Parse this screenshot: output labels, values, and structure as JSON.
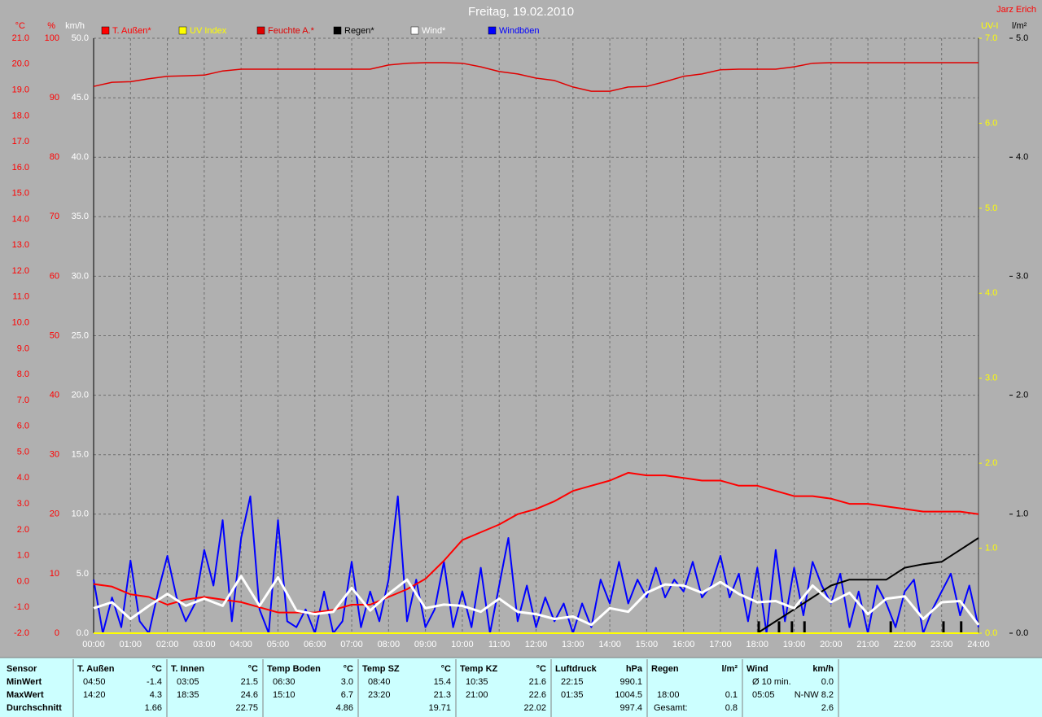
{
  "chart_data": {
    "type": "line",
    "title": "Freitag, 19.02.2010",
    "author": "Jarz Erich",
    "grid": true,
    "xlim": [
      0,
      24
    ],
    "xticks": [
      {
        "value": 0,
        "label": "00:00"
      },
      {
        "value": 1,
        "label": "01:00"
      },
      {
        "value": 2,
        "label": "02:00"
      },
      {
        "value": 3,
        "label": "03:00"
      },
      {
        "value": 4,
        "label": "04:00"
      },
      {
        "value": 5,
        "label": "05:00"
      },
      {
        "value": 6,
        "label": "06:00"
      },
      {
        "value": 7,
        "label": "07:00"
      },
      {
        "value": 8,
        "label": "08:00"
      },
      {
        "value": 9,
        "label": "09:00"
      },
      {
        "value": 10,
        "label": "10:00"
      },
      {
        "value": 11,
        "label": "11:00"
      },
      {
        "value": 12,
        "label": "12:00"
      },
      {
        "value": 13,
        "label": "13:00"
      },
      {
        "value": 14,
        "label": "14:00"
      },
      {
        "value": 15,
        "label": "15:00"
      },
      {
        "value": 16,
        "label": "16:00"
      },
      {
        "value": 17,
        "label": "17:00"
      },
      {
        "value": 18,
        "label": "18:00"
      },
      {
        "value": 19,
        "label": "19:00"
      },
      {
        "value": 20,
        "label": "20:00"
      },
      {
        "value": 21,
        "label": "21:00"
      },
      {
        "value": 22,
        "label": "22:00"
      },
      {
        "value": 23,
        "label": "23:00"
      },
      {
        "value": 24,
        "label": "24:00"
      }
    ],
    "x": [
      0,
      0.5,
      1,
      1.5,
      2,
      2.5,
      3,
      3.5,
      4,
      4.5,
      5,
      5.5,
      6,
      6.5,
      7,
      7.5,
      8,
      8.5,
      9,
      9.5,
      10,
      10.5,
      11,
      11.5,
      12,
      12.5,
      13,
      13.5,
      14,
      14.5,
      15,
      15.5,
      16,
      16.5,
      17,
      17.5,
      18,
      18.5,
      19,
      19.5,
      20,
      20.5,
      21,
      21.5,
      22,
      22.5,
      23,
      23.5,
      24
    ],
    "axes": {
      "celsius": {
        "label": "°C",
        "color": "#ff0000",
        "side": "left",
        "lim": [
          -2,
          21
        ],
        "ticks": [
          {
            "value": -2,
            "label": "-2.0"
          },
          {
            "value": -1,
            "label": "-1.0"
          },
          {
            "value": 0,
            "label": "0.0"
          },
          {
            "value": 1,
            "label": "1.0"
          },
          {
            "value": 2,
            "label": "2.0"
          },
          {
            "value": 3,
            "label": "3.0"
          },
          {
            "value": 4,
            "label": "4.0"
          },
          {
            "value": 5,
            "label": "5.0"
          },
          {
            "value": 6,
            "label": "6.0"
          },
          {
            "value": 7,
            "label": "7.0"
          },
          {
            "value": 8,
            "label": "8.0"
          },
          {
            "value": 9,
            "label": "9.0"
          },
          {
            "value": 10,
            "label": "10.0"
          },
          {
            "value": 11,
            "label": "11.0"
          },
          {
            "value": 12,
            "label": "12.0"
          },
          {
            "value": 13,
            "label": "13.0"
          },
          {
            "value": 14,
            "label": "14.0"
          },
          {
            "value": 15,
            "label": "15.0"
          },
          {
            "value": 16,
            "label": "16.0"
          },
          {
            "value": 17,
            "label": "17.0"
          },
          {
            "value": 18,
            "label": "18.0"
          },
          {
            "value": 19,
            "label": "19.0"
          },
          {
            "value": 20,
            "label": "20.0"
          },
          {
            "value": 21,
            "label": "21.0"
          }
        ]
      },
      "percent": {
        "label": "%",
        "color": "#ff0000",
        "side": "left",
        "lim": [
          0,
          100
        ],
        "ticks": [
          0,
          10,
          20,
          30,
          40,
          50,
          60,
          70,
          80,
          90,
          100
        ]
      },
      "kmh": {
        "label": "km/h",
        "color": "#ffffff",
        "side": "left",
        "lim": [
          0,
          50
        ],
        "grid": true,
        "ticks": [
          {
            "value": 0,
            "label": "0.0"
          },
          {
            "value": 5,
            "label": "5.0"
          },
          {
            "value": 10,
            "label": "10.0"
          },
          {
            "value": 15,
            "label": "15.0"
          },
          {
            "value": 20,
            "label": "20.0"
          },
          {
            "value": 25,
            "label": "25.0"
          },
          {
            "value": 30,
            "label": "30.0"
          },
          {
            "value": 35,
            "label": "35.0"
          },
          {
            "value": 40,
            "label": "40.0"
          },
          {
            "value": 45,
            "label": "45.0"
          },
          {
            "value": 50,
            "label": "50.0"
          }
        ]
      },
      "uv": {
        "label": "UV-I",
        "color": "#ffff00",
        "side": "right",
        "lim": [
          0,
          7
        ],
        "ticks": [
          {
            "value": 0,
            "label": "0.0"
          },
          {
            "value": 1,
            "label": "1.0"
          },
          {
            "value": 2,
            "label": "2.0"
          },
          {
            "value": 3,
            "label": "3.0"
          },
          {
            "value": 4,
            "label": "4.0"
          },
          {
            "value": 5,
            "label": "5.0"
          },
          {
            "value": 6,
            "label": "6.0"
          },
          {
            "value": 7,
            "label": "7.0"
          }
        ]
      },
      "rain": {
        "label": "l/m²",
        "color": "#000000",
        "side": "right",
        "lim": [
          0,
          5
        ],
        "ticks": [
          {
            "value": 0,
            "label": "0.0"
          },
          {
            "value": 1,
            "label": "1.0"
          },
          {
            "value": 2,
            "label": "2.0"
          },
          {
            "value": 3,
            "label": "3.0"
          },
          {
            "value": 4,
            "label": "4.0"
          },
          {
            "value": 5,
            "label": "5.0"
          }
        ]
      }
    },
    "series": [
      {
        "name": "T. Außen*",
        "color": "#ff0000",
        "axis": "celsius",
        "values": [
          -0.1,
          -0.2,
          -0.5,
          -0.6,
          -0.9,
          -0.7,
          -0.6,
          -0.7,
          -0.8,
          -1.0,
          -1.2,
          -1.2,
          -1.2,
          -1.1,
          -0.9,
          -0.9,
          -0.6,
          -0.3,
          0.1,
          0.8,
          1.6,
          1.9,
          2.2,
          2.6,
          2.8,
          3.1,
          3.5,
          3.7,
          3.9,
          4.2,
          4.1,
          4.1,
          4.0,
          3.9,
          3.9,
          3.7,
          3.7,
          3.5,
          3.3,
          3.3,
          3.2,
          3.0,
          3.0,
          2.9,
          2.8,
          2.7,
          2.7,
          2.7,
          2.6
        ]
      },
      {
        "name": "UV Index",
        "color": "#ffff00",
        "axis": "uv",
        "values": [
          0,
          0,
          0,
          0,
          0,
          0,
          0,
          0,
          0,
          0,
          0,
          0,
          0,
          0,
          0,
          0,
          0,
          0,
          0,
          0,
          0,
          0,
          0,
          0,
          0,
          0,
          0,
          0,
          0,
          0,
          0,
          0,
          0,
          0,
          0,
          0,
          0,
          0,
          0,
          0,
          0,
          0,
          0,
          0,
          0,
          0,
          0,
          0,
          0
        ]
      },
      {
        "name": "Feuchte A.*",
        "color": "#e00000",
        "axis": "percent",
        "values": [
          91.9,
          92.6,
          92.7,
          93.2,
          93.6,
          93.7,
          93.8,
          94.5,
          94.8,
          94.8,
          94.8,
          94.8,
          94.8,
          94.8,
          94.8,
          94.8,
          95.5,
          95.8,
          95.9,
          95.9,
          95.8,
          95.2,
          94.4,
          94.0,
          93.3,
          92.9,
          91.8,
          91.1,
          91.1,
          91.8,
          91.9,
          92.7,
          93.6,
          94.0,
          94.7,
          94.8,
          94.8,
          94.8,
          95.2,
          95.8,
          95.9,
          95.9,
          95.9,
          95.9,
          95.9,
          95.9,
          95.9,
          95.9,
          95.9
        ]
      },
      {
        "name": "Regen*",
        "color": "#000000",
        "axis": "rain",
        "values": [
          null,
          null,
          null,
          null,
          null,
          null,
          null,
          null,
          null,
          null,
          null,
          null,
          null,
          null,
          null,
          null,
          null,
          null,
          null,
          null,
          null,
          null,
          null,
          null,
          null,
          null,
          null,
          null,
          null,
          null,
          null,
          null,
          null,
          null,
          null,
          null,
          0,
          0.1,
          0.2,
          0.3,
          0.4,
          0.45,
          0.45,
          0.45,
          0.55,
          0.58,
          0.6,
          0.7,
          0.8
        ]
      },
      {
        "name": "Wind*",
        "color": "#ffffff",
        "axis": "kmh",
        "values": [
          2.1,
          2.6,
          1.2,
          2.3,
          3.3,
          2.3,
          2.9,
          2.3,
          4.8,
          2.3,
          4.7,
          1.9,
          1.6,
          1.8,
          3.8,
          1.9,
          3.3,
          4.5,
          2.1,
          2.4,
          2.3,
          1.8,
          2.9,
          1.8,
          1.6,
          1.2,
          1.4,
          0.7,
          2.1,
          1.8,
          3.4,
          4.1,
          4.0,
          3.4,
          4.3,
          3.3,
          2.6,
          2.7,
          2.1,
          4.0,
          2.6,
          3.4,
          1.6,
          2.9,
          3.1,
          1.2,
          2.6,
          2.7,
          0.7
        ]
      },
      {
        "name": "Windböen",
        "color": "#0000ff",
        "axis": "kmh",
        "x": [
          0,
          0.25,
          0.5,
          0.75,
          1,
          1.25,
          1.5,
          1.75,
          2,
          2.25,
          2.5,
          2.75,
          3,
          3.25,
          3.5,
          3.75,
          4,
          4.25,
          4.5,
          4.75,
          5,
          5.25,
          5.5,
          5.75,
          6,
          6.25,
          6.5,
          6.75,
          7,
          7.25,
          7.5,
          7.75,
          8,
          8.25,
          8.5,
          8.75,
          9,
          9.25,
          9.5,
          9.75,
          10,
          10.25,
          10.5,
          10.75,
          11,
          11.25,
          11.5,
          11.75,
          12,
          12.25,
          12.5,
          12.75,
          13,
          13.25,
          13.5,
          13.75,
          14,
          14.25,
          14.5,
          14.75,
          15,
          15.25,
          15.5,
          15.75,
          16,
          16.25,
          16.5,
          16.75,
          17,
          17.25,
          17.5,
          17.75,
          18,
          18.25,
          18.5,
          18.75,
          19,
          19.25,
          19.5,
          19.75,
          20,
          20.25,
          20.5,
          20.75,
          21,
          21.25,
          21.5,
          21.75,
          22,
          22.25,
          22.5,
          22.75,
          23,
          23.25,
          23.5,
          23.75,
          24
        ],
        "values": [
          4.5,
          0,
          3.0,
          0.5,
          6.1,
          1.0,
          0,
          3.5,
          6.5,
          3.0,
          1.0,
          2.5,
          7.0,
          4.0,
          9.5,
          1.0,
          8.0,
          11.5,
          2.0,
          0,
          9.5,
          1.0,
          0.5,
          2.0,
          0,
          3.5,
          0,
          1.0,
          6.0,
          0.5,
          3.5,
          1.0,
          4.5,
          11.5,
          1.0,
          4.5,
          0.5,
          2.0,
          6.0,
          0.5,
          3.5,
          0.5,
          5.5,
          0,
          4.0,
          8.0,
          1.0,
          4.0,
          0.5,
          3.0,
          1.0,
          2.5,
          0,
          2.5,
          0.5,
          4.5,
          2.5,
          6.0,
          2.5,
          4.5,
          3.0,
          5.5,
          3.0,
          4.5,
          3.5,
          6.0,
          3.0,
          4.0,
          6.5,
          3.0,
          5.0,
          1.0,
          5.5,
          0,
          7.0,
          1.0,
          5.5,
          1.5,
          6.0,
          4.0,
          2.5,
          5.0,
          0.5,
          3.5,
          0,
          4.0,
          2.5,
          0.5,
          3.5,
          4.5,
          0,
          2.0,
          3.5,
          5.0,
          1.5,
          4.0,
          0.5
        ]
      }
    ],
    "rain_bars": {
      "color": "#000000",
      "axis": "rain",
      "x": [
        18.04,
        18.59,
        18.94,
        19.28,
        21.62,
        23.05,
        23.53
      ],
      "values": [
        0.1,
        0.1,
        0.1,
        0.1,
        0.1,
        0.1,
        0.1
      ]
    }
  },
  "table": {
    "row_labels": [
      "Sensor",
      "MinWert",
      "MaxWert",
      "Durchschnitt"
    ],
    "groups": [
      {
        "header": "T. Außen",
        "unit": "°C",
        "min": {
          "time": "04:50",
          "value": "-1.4"
        },
        "max": {
          "time": "14:20",
          "value": "4.3"
        },
        "avg": "1.66"
      },
      {
        "header": "T. Innen",
        "unit": "°C",
        "min": {
          "time": "03:05",
          "value": "21.5"
        },
        "max": {
          "time": "18:35",
          "value": "24.6"
        },
        "avg": "22.75"
      },
      {
        "header": "Temp Boden",
        "unit": "°C",
        "min": {
          "time": "06:30",
          "value": "3.0"
        },
        "max": {
          "time": "15:10",
          "value": "6.7"
        },
        "avg": "4.86"
      },
      {
        "header": "Temp SZ",
        "unit": "°C",
        "min": {
          "time": "08:40",
          "value": "15.4"
        },
        "max": {
          "time": "23:20",
          "value": "21.3"
        },
        "avg": "19.71"
      },
      {
        "header": "Temp KZ",
        "unit": "°C",
        "min": {
          "time": "10:35",
          "value": "21.6"
        },
        "max": {
          "time": "21:00",
          "value": "22.6"
        },
        "avg": "22.02"
      },
      {
        "header": "Luftdruck",
        "unit": "hPa",
        "min": {
          "time": "22:15",
          "value": "990.1"
        },
        "max": {
          "time": "01:35",
          "value": "1004.5"
        },
        "avg": "997.4"
      },
      {
        "header": "Regen",
        "unit": "l/m²",
        "max": {
          "time": "18:00",
          "value": "0.1"
        },
        "avg": {
          "label": "Gesamt:",
          "value": "0.8"
        }
      },
      {
        "header": "Wind",
        "unit": "km/h",
        "min": {
          "time": "Ø 10 min.",
          "value": "0.0"
        },
        "max": {
          "time": "05:05",
          "value": "N-NW 8.2"
        },
        "avg": "2.6"
      }
    ]
  }
}
